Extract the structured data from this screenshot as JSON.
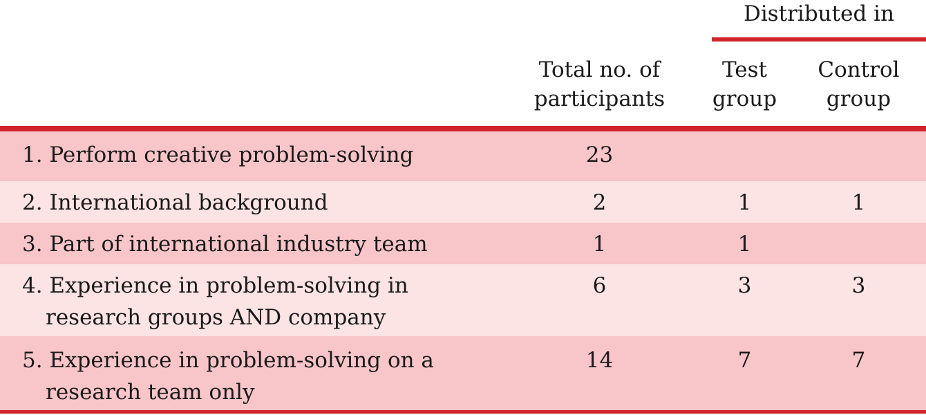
{
  "header": {
    "spanner": "Distributed in",
    "total": [
      "Total no. of",
      "participants"
    ],
    "test": [
      "Test",
      "group"
    ],
    "control": [
      "Control",
      "group"
    ]
  },
  "rows": [
    {
      "label": [
        "1. Perform creative problem-solving"
      ],
      "total": "23",
      "test": "",
      "control": ""
    },
    {
      "label": [
        "2. International background"
      ],
      "total": "2",
      "test": "1",
      "control": "1"
    },
    {
      "label": [
        "3. Part of international industry team"
      ],
      "total": "1",
      "test": "1",
      "control": ""
    },
    {
      "label": [
        "4. Experience in problem-solving in",
        "research groups AND company"
      ],
      "total": "6",
      "test": "3",
      "control": "3"
    },
    {
      "label": [
        "5. Experience in problem-solving on a",
        "research team only"
      ],
      "total": "14",
      "test": "7",
      "control": "7"
    }
  ],
  "colors": {
    "accent": "#d2232a",
    "row_dark": "#f8c5c9",
    "row_light": "#fce3e4"
  }
}
